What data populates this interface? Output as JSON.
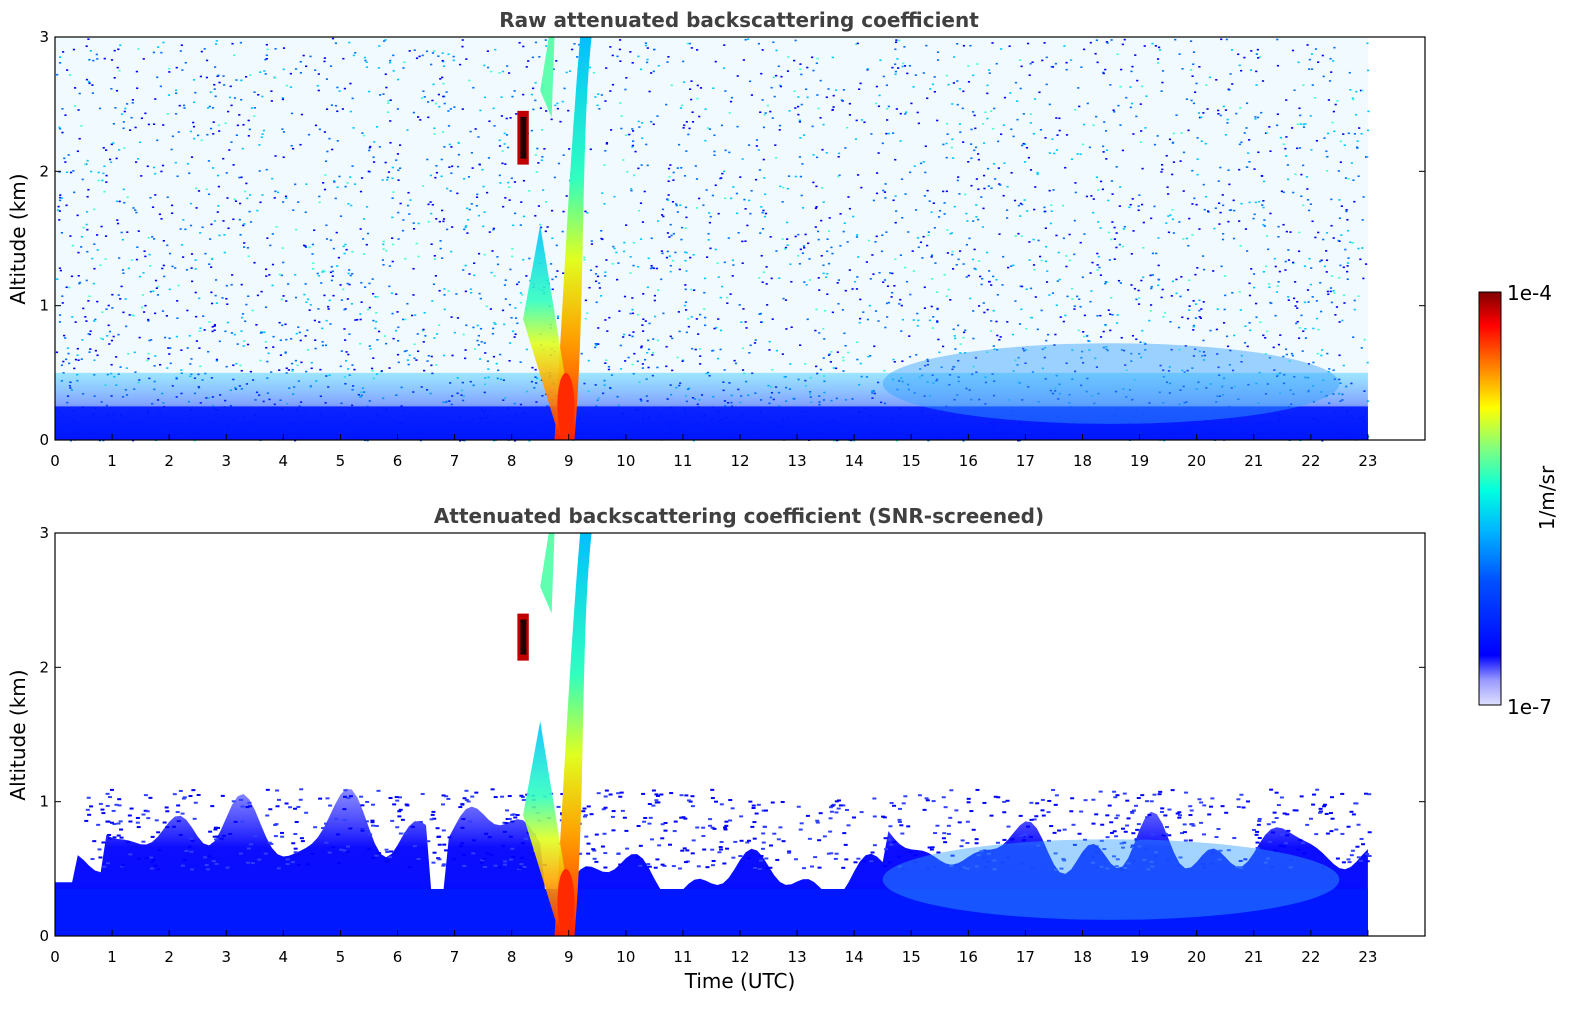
{
  "chart_data": [
    {
      "type": "heatmap",
      "title": "Raw attenuated backscattering coefficient",
      "xlabel": "",
      "ylabel": "Altitude (km)",
      "xlim": [
        0,
        24
      ],
      "ylim": [
        0,
        3
      ],
      "x_ticks": [
        "0",
        "1",
        "2",
        "3",
        "4",
        "5",
        "6",
        "7",
        "8",
        "9",
        "10",
        "11",
        "12",
        "13",
        "14",
        "15",
        "16",
        "17",
        "18",
        "19",
        "20",
        "21",
        "22",
        "23"
      ],
      "y_ticks": [
        "0",
        "1",
        "2",
        "3"
      ],
      "data_x_range": [
        0,
        23
      ],
      "screened": false,
      "features": [
        {
          "t_start": 8.1,
          "t_end": 8.3,
          "alt_bottom": 2.05,
          "alt_top": 2.45,
          "intensity": "very high"
        },
        {
          "t_start": 8.6,
          "t_end": 9.4,
          "alt_bottom": 0.0,
          "alt_top": 3.0,
          "intensity": "high"
        },
        {
          "t_start": 0.0,
          "t_end": 23.0,
          "alt_bottom": 0.0,
          "alt_top": 0.5,
          "intensity": "medium"
        },
        {
          "t_start": 14.5,
          "t_end": 22.5,
          "alt_bottom": 0.2,
          "alt_top": 0.8,
          "intensity": "medium-high"
        }
      ]
    },
    {
      "type": "heatmap",
      "title": "Attenuated backscattering coefficient (SNR-screened)",
      "xlabel": "Time (UTC)",
      "ylabel": "Altitude (km)",
      "xlim": [
        0,
        24
      ],
      "ylim": [
        0,
        3
      ],
      "x_ticks": [
        "0",
        "1",
        "2",
        "3",
        "4",
        "5",
        "6",
        "7",
        "8",
        "9",
        "10",
        "11",
        "12",
        "13",
        "14",
        "15",
        "16",
        "17",
        "18",
        "19",
        "20",
        "21",
        "22",
        "23"
      ],
      "y_ticks": [
        "0",
        "1",
        "2",
        "3"
      ],
      "data_x_range": [
        0,
        23
      ],
      "screened": true,
      "features": [
        {
          "t_start": 8.1,
          "t_end": 8.3,
          "alt_bottom": 2.05,
          "alt_top": 2.4,
          "intensity": "very high"
        },
        {
          "t_start": 8.6,
          "t_end": 9.4,
          "alt_bottom": 0.0,
          "alt_top": 3.0,
          "intensity": "high"
        },
        {
          "t_start": 0.4,
          "t_end": 23.0,
          "alt_bottom": 0.0,
          "alt_top": 1.1,
          "intensity": "medium"
        }
      ]
    }
  ],
  "colorbar": {
    "label": "1/m/sr",
    "max_label": "1e-4",
    "min_label": "1e-7",
    "colormap": "jet",
    "scale": "log"
  }
}
